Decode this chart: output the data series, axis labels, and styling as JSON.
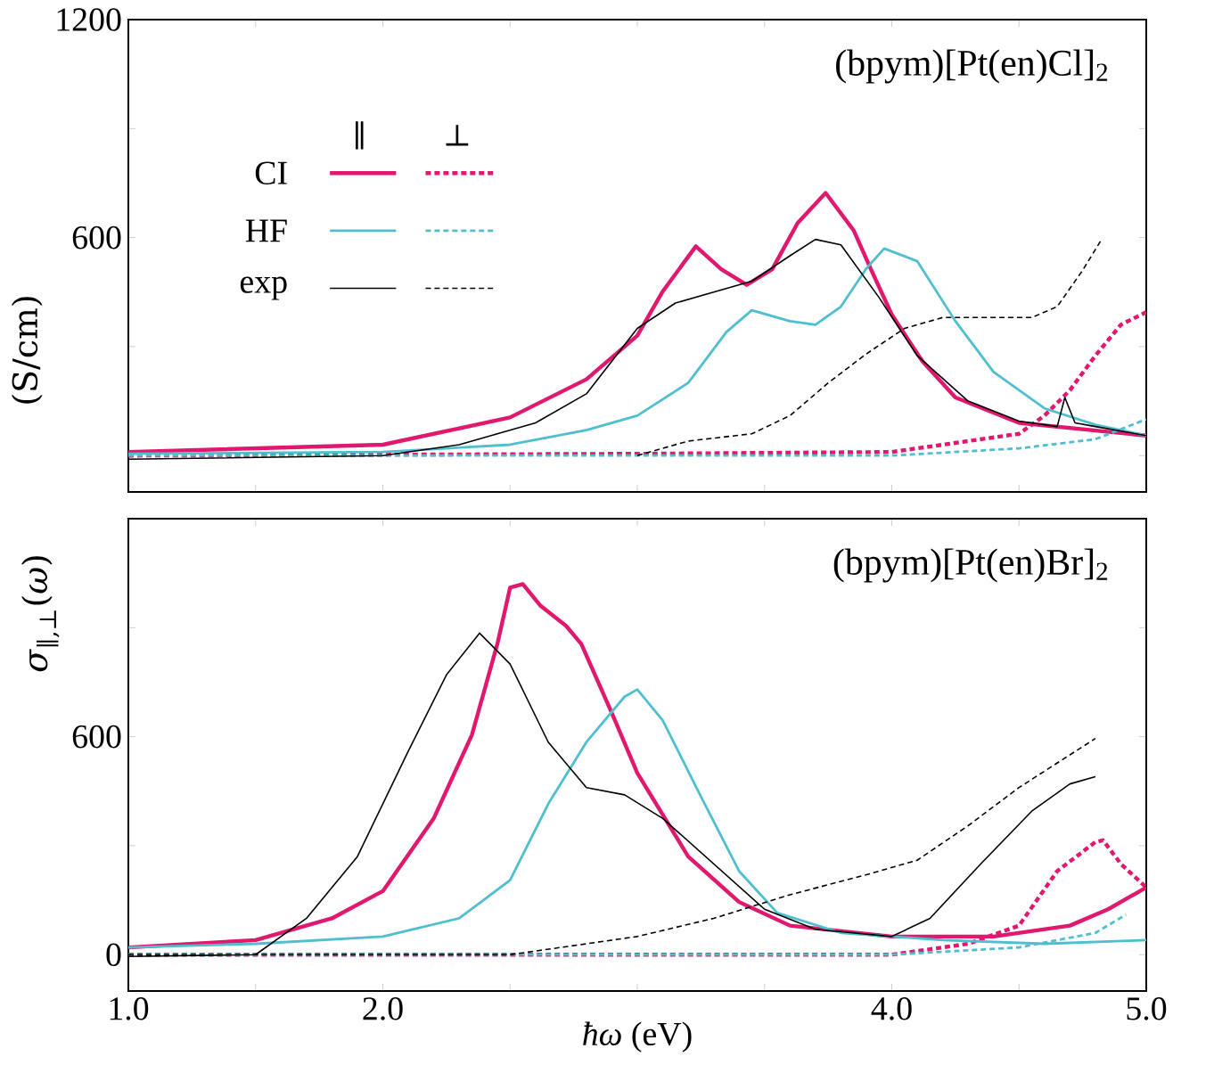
{
  "chart_data": [
    {
      "type": "line",
      "title": "(bpym)[Pt(en)Cl]$_{2}$",
      "ylabel": "(S/cm)",
      "legend": "top left",
      "tick_labels": "y",
      "annotations": [
        "∥",
        "⊥"
      ],
      "xlim": [
        1,
        5
      ],
      "ylim": [
        -100,
        1200
      ],
      "xticks": [
        {
          "value": 1,
          "label": null
        },
        {
          "value": 1.5,
          "label": null
        },
        {
          "value": 2,
          "label": null
        },
        {
          "value": 2.5,
          "label": null
        },
        {
          "value": 3,
          "label": null
        },
        {
          "value": 3.5,
          "label": null
        },
        {
          "value": 4,
          "label": null
        },
        {
          "value": 4.5,
          "label": null
        },
        {
          "value": 5,
          "label": null
        }
      ],
      "yticks": [
        {
          "value": 0,
          "label": null
        },
        {
          "value": 300,
          "label": null
        },
        600,
        {
          "value": 900,
          "label": null
        },
        1200
      ],
      "series": [
        {
          "name": "CI",
          "color": "#e0196e",
          "line_style": "solid",
          "x": [
            1,
            2,
            2.5,
            2.8,
            3,
            3.1,
            3.23,
            3.33,
            3.43,
            3.53,
            3.63,
            3.74,
            3.85,
            3.92,
            4,
            4.12,
            4.25,
            4.5,
            5
          ],
          "values": [
            10,
            30,
            105,
            210,
            330,
            452,
            576,
            513,
            470,
            513,
            640,
            723,
            620,
            510,
            388,
            260,
            160,
            90,
            55
          ]
        },
        {
          "color": "#e0196e",
          "line_style": "dashed",
          "x": [
            1,
            3,
            4,
            4.3,
            4.5,
            4.6,
            4.7,
            4.8,
            4.9,
            5
          ],
          "values": [
            0,
            5,
            10,
            40,
            60,
            110,
            180,
            275,
            360,
            395
          ]
        },
        {
          "name": "HF",
          "color": "#4fbfcf",
          "line_style": "solid",
          "x": [
            1,
            2,
            2.5,
            2.8,
            3,
            3.2,
            3.35,
            3.45,
            3.6,
            3.7,
            3.8,
            3.9,
            3.97,
            4.1,
            4.25,
            4.4,
            4.6,
            4.8,
            5
          ],
          "values": [
            5,
            10,
            30,
            70,
            110,
            200,
            340,
            400,
            370,
            360,
            410,
            515,
            570,
            535,
            370,
            230,
            130,
            85,
            55
          ]
        },
        {
          "color": "#4fbfcf",
          "line_style": "dashed",
          "x": [
            1,
            4,
            4.5,
            4.8,
            5
          ],
          "values": [
            0,
            0,
            20,
            45,
            100
          ]
        },
        {
          "name": "exp",
          "color": "#000000",
          "line_style": "solid",
          "x": [
            1,
            2,
            2.3,
            2.6,
            2.8,
            3,
            3.15,
            3.3,
            3.45,
            3.6,
            3.7,
            3.8,
            3.95,
            4.1,
            4.3,
            4.5,
            4.65,
            4.68,
            4.72,
            4.8,
            5
          ],
          "values": [
            -10,
            0,
            30,
            90,
            170,
            350,
            420,
            450,
            480,
            550,
            595,
            580,
            435,
            275,
            150,
            95,
            80,
            160,
            90,
            80,
            55
          ]
        },
        {
          "color": "#000000",
          "line_style": "dashed",
          "x": [
            3,
            3.2,
            3.45,
            3.6,
            3.75,
            3.9,
            4.05,
            4.2,
            4.4,
            4.55,
            4.65,
            4.75,
            4.82
          ],
          "values": [
            0,
            40,
            60,
            110,
            200,
            280,
            350,
            380,
            380,
            380,
            410,
            510,
            590
          ]
        }
      ]
    },
    {
      "type": "line",
      "title": "(bpym)[Pt(en)Br]$_{2}$",
      "ylabel": "*σ*$_{∥,⊥}$(*ω*)",
      "xlabel": "*ħω* (eV)",
      "xlim": [
        1,
        5
      ],
      "ylim": [
        -100,
        1200
      ],
      "xticks": [
        {
          "value": 1,
          "label": "1.0"
        },
        {
          "value": 1.5,
          "label": null
        },
        {
          "value": 2,
          "label": "2.0"
        },
        {
          "value": 2.5,
          "label": null
        },
        {
          "value": 3,
          "label": null
        },
        {
          "value": 3.5,
          "label": null
        },
        {
          "value": 4,
          "label": "4.0"
        },
        {
          "value": 4.5,
          "label": null
        },
        {
          "value": 5,
          "label": "5.0"
        }
      ],
      "yticks": [
        0,
        {
          "value": 300,
          "label": null
        },
        600,
        {
          "value": 900,
          "label": null
        },
        {
          "value": 1200,
          "label": null
        }
      ],
      "series": [
        {
          "color": "#e0196e",
          "line_style": "solid",
          "x": [
            1,
            1.5,
            1.8,
            2,
            2.2,
            2.35,
            2.45,
            2.5,
            2.55,
            2.62,
            2.72,
            2.78,
            2.9,
            3,
            3.2,
            3.4,
            3.6,
            4,
            4.4,
            4.7,
            4.85,
            5
          ],
          "values": [
            20,
            40,
            100,
            175,
            375,
            605,
            855,
            1010,
            1020,
            960,
            905,
            855,
            665,
            500,
            270,
            145,
            80,
            50,
            50,
            80,
            125,
            185
          ]
        },
        {
          "color": "#e0196e",
          "line_style": "dashed",
          "x": [
            1,
            4,
            4.3,
            4.5,
            4.65,
            4.8,
            4.83,
            4.9,
            5
          ],
          "values": [
            0,
            0,
            30,
            80,
            230,
            310,
            315,
            250,
            185
          ]
        },
        {
          "color": "#4fbfcf",
          "line_style": "solid",
          "x": [
            1,
            1.5,
            2,
            2.3,
            2.5,
            2.65,
            2.8,
            2.95,
            3,
            3.1,
            3.25,
            3.4,
            3.55,
            3.8,
            4.2,
            4.6,
            5
          ],
          "values": [
            20,
            30,
            50,
            100,
            205,
            415,
            585,
            710,
            730,
            645,
            435,
            230,
            115,
            60,
            40,
            30,
            40
          ]
        },
        {
          "color": "#4fbfcf",
          "line_style": "dashed",
          "x": [
            1,
            4,
            4.5,
            4.8,
            4.92
          ],
          "values": [
            0,
            0,
            20,
            60,
            110
          ]
        },
        {
          "color": "#000000",
          "line_style": "solid",
          "x": [
            1,
            1.5,
            1.7,
            1.9,
            2.1,
            2.25,
            2.38,
            2.5,
            2.65,
            2.8,
            2.95,
            3.1,
            3.3,
            3.5,
            3.7,
            4,
            4.15,
            4.35,
            4.55,
            4.7,
            4.8
          ],
          "values": [
            -5,
            0,
            100,
            270,
            560,
            770,
            885,
            800,
            585,
            460,
            440,
            375,
            250,
            125,
            70,
            50,
            100,
            250,
            395,
            470,
            490
          ]
        },
        {
          "color": "#000000",
          "line_style": "dashed",
          "x": [
            1,
            2.5,
            2.7,
            3,
            3.3,
            3.6,
            3.9,
            4.1,
            4.3,
            4.5,
            4.7,
            4.8
          ],
          "values": [
            0,
            0,
            20,
            50,
            100,
            165,
            220,
            260,
            355,
            460,
            550,
            595
          ]
        }
      ]
    }
  ]
}
